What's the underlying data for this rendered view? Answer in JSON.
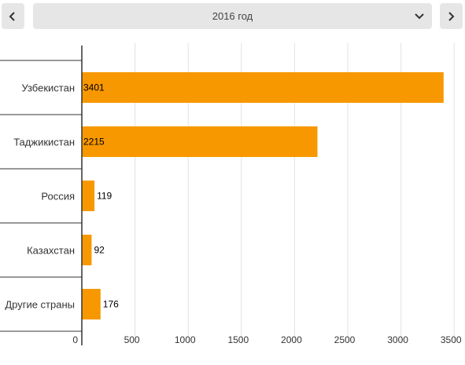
{
  "navigation": {
    "prev_icon": "chevron-left-icon",
    "next_icon": "chevron-right-icon",
    "year_selected": "2016 год",
    "dropdown_icon": "chevron-down-icon"
  },
  "colors": {
    "bar": "#F79800",
    "grid": "#e2e2e2",
    "axis": "#333333",
    "control_bg": "#e6e6e6"
  },
  "chart_data": {
    "type": "bar",
    "orientation": "horizontal",
    "categories": [
      "Узбекистан",
      "Таджикистан",
      "Россия",
      "Казахстан",
      "Другие страны"
    ],
    "values": [
      3401,
      2215,
      119,
      92,
      176
    ],
    "data_labels": [
      "3401",
      "2215",
      "119",
      "92",
      "176"
    ],
    "xlim": [
      0,
      3600
    ],
    "x_ticks": [
      0,
      500,
      1000,
      1500,
      2000,
      2500,
      3000,
      3500
    ],
    "x_tick_labels": [
      "0",
      "500",
      "1000",
      "1500",
      "2000",
      "2500",
      "3000",
      "3500"
    ],
    "grid": true,
    "legend": false,
    "title": "",
    "xlabel": "",
    "ylabel": ""
  }
}
